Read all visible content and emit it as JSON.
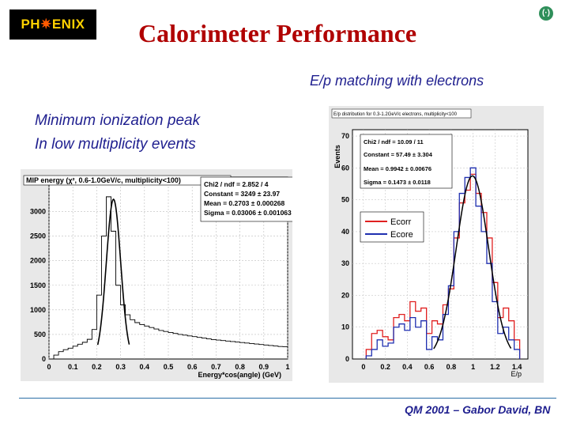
{
  "header": {
    "logo_text_left": "PH",
    "logo_star": "✷",
    "logo_text_right": "ENIX",
    "title": "Calorimeter Performance",
    "badge": "(·)"
  },
  "captions": {
    "right": "E/p matching with electrons",
    "left_line1": "Minimum ionization peak",
    "left_line2": "In low multiplicity events"
  },
  "footer": "QM 2001 – Gabor David, BN",
  "colors": {
    "title": "#b00000",
    "caption": "#1f1f8f",
    "ecorr": "#e02020",
    "ecore": "#1f2fb0"
  },
  "chart_data": [
    {
      "type": "bar",
      "title": "MIP energy (χ², 0.6-1.0GeV/c, multiplicity<100)",
      "xlabel": "Energy*cos(angle) (GeV)",
      "xlim": [
        0,
        1.0
      ],
      "ylim": [
        0,
        3700
      ],
      "x_ticks": [
        "0",
        "0.1",
        "0.2",
        "0.3",
        "0.4",
        "0.5",
        "0.6",
        "0.7",
        "0.8",
        "0.9",
        "1"
      ],
      "y_ticks": [
        "0",
        "500",
        "1000",
        "1500",
        "2000",
        "2500",
        "3000"
      ],
      "stats": [
        "Chi2 / ndf = 2.852 / 4",
        "Constant = 3249 ± 23.97",
        "Mean = 0.2703 ± 0.000268",
        "Sigma = 0.03006 ± 0.001063"
      ],
      "bins": {
        "x": [
          0.01,
          0.03,
          0.05,
          0.07,
          0.09,
          0.11,
          0.13,
          0.15,
          0.17,
          0.19,
          0.21,
          0.23,
          0.25,
          0.27,
          0.29,
          0.31,
          0.33,
          0.35,
          0.37,
          0.39,
          0.41,
          0.43,
          0.45,
          0.47,
          0.49,
          0.51,
          0.53,
          0.55,
          0.57,
          0.59,
          0.61,
          0.63,
          0.65,
          0.67,
          0.69,
          0.71,
          0.73,
          0.75,
          0.77,
          0.79,
          0.81,
          0.83,
          0.85,
          0.87,
          0.89,
          0.91,
          0.93,
          0.95,
          0.97,
          0.99
        ],
        "values": [
          0,
          80,
          150,
          190,
          220,
          260,
          300,
          340,
          400,
          600,
          1300,
          2500,
          3300,
          2600,
          1500,
          1100,
          900,
          800,
          740,
          700,
          670,
          640,
          610,
          580,
          560,
          540,
          520,
          500,
          485,
          470,
          455,
          440,
          425,
          410,
          395,
          385,
          375,
          365,
          355,
          345,
          335,
          325,
          315,
          305,
          295,
          285,
          275,
          265,
          255,
          250
        ]
      },
      "fit": {
        "constant": 3249,
        "mean": 0.2703,
        "sigma": 0.03006
      }
    },
    {
      "type": "bar",
      "title": "E/p distribution for 0.3-1.2GeV/c electrons, multiplicity<100",
      "ylabel": "Events",
      "xlabel": "E/p",
      "xlim": [
        -0.1,
        1.5
      ],
      "ylim": [
        0,
        72
      ],
      "x_ticks": [
        "0",
        "0.2",
        "0.4",
        "0.6",
        "0.8",
        "1",
        "1.2",
        "1.4"
      ],
      "y_ticks": [
        "0",
        "10",
        "20",
        "30",
        "40",
        "50",
        "60",
        "70"
      ],
      "stats": [
        "Chi2 / ndf = 10.09 / 11",
        "Constant = 57.49 ± 3.304",
        "Mean = 0.9942 ± 0.00676",
        "Sigma = 0.1473 ± 0.0118"
      ],
      "legend": [
        "Ecorr",
        "Ecore"
      ],
      "series": [
        {
          "name": "Ecorr",
          "x": [
            0.05,
            0.1,
            0.15,
            0.2,
            0.25,
            0.3,
            0.35,
            0.4,
            0.45,
            0.5,
            0.55,
            0.6,
            0.65,
            0.7,
            0.75,
            0.8,
            0.85,
            0.9,
            0.95,
            1.0,
            1.05,
            1.1,
            1.15,
            1.2,
            1.25,
            1.3,
            1.35,
            1.4
          ],
          "values": [
            3,
            8,
            9,
            7,
            6,
            13,
            14,
            12,
            18,
            15,
            16,
            8,
            12,
            11,
            17,
            22,
            38,
            49,
            53,
            58,
            52,
            46,
            38,
            24,
            13,
            16,
            12,
            6
          ]
        },
        {
          "name": "Ecore",
          "x": [
            0.05,
            0.1,
            0.15,
            0.2,
            0.25,
            0.3,
            0.35,
            0.4,
            0.45,
            0.5,
            0.55,
            0.6,
            0.65,
            0.7,
            0.75,
            0.8,
            0.85,
            0.9,
            0.95,
            1.0,
            1.05,
            1.1,
            1.15,
            1.2,
            1.25,
            1.3,
            1.35,
            1.4
          ],
          "values": [
            1,
            3,
            6,
            4,
            5,
            10,
            11,
            9,
            13,
            10,
            12,
            3,
            7,
            6,
            14,
            23,
            40,
            52,
            57,
            60,
            48,
            40,
            30,
            18,
            8,
            10,
            6,
            3
          ]
        }
      ],
      "fit": {
        "constant": 57.49,
        "mean": 0.9942,
        "sigma": 0.1473
      }
    }
  ]
}
